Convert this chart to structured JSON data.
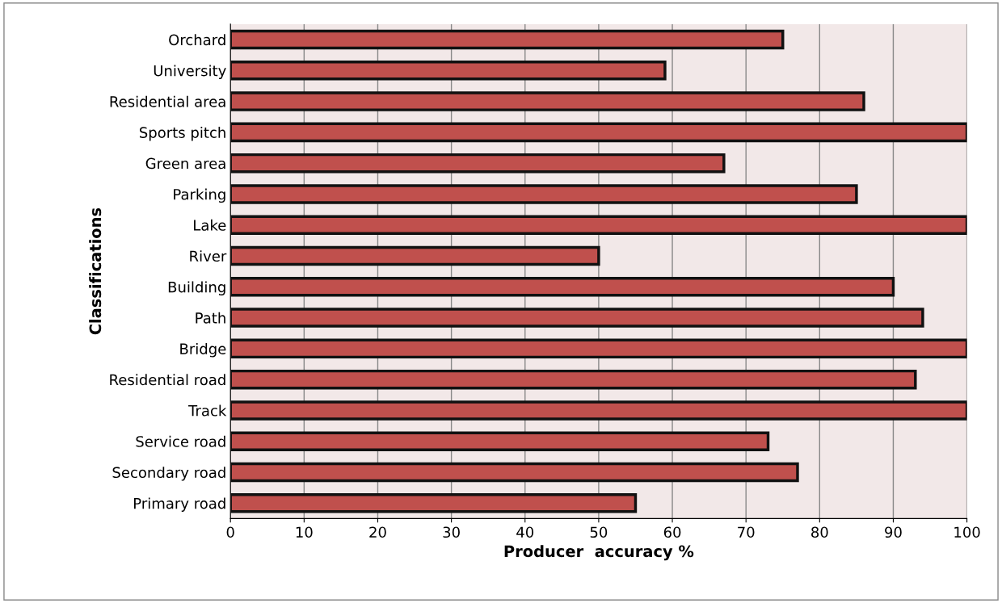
{
  "chart_data": {
    "type": "bar",
    "orientation": "horizontal",
    "xlabel": "Producer  accuracy %",
    "ylabel": "Classifications",
    "categories": [
      "Orchard",
      "University",
      "Residential area",
      "Sports pitch",
      "Green area",
      "Parking",
      "Lake",
      "River",
      "Building",
      "Path",
      "Bridge",
      "Residential road",
      "Track",
      "Service road",
      "Secondary road",
      "Primary road"
    ],
    "values": [
      75,
      59,
      86,
      100,
      67,
      85,
      100,
      50,
      90,
      94,
      100,
      93,
      100,
      73,
      77,
      55
    ],
    "color": "#c0504d",
    "xlim": [
      0,
      100
    ],
    "xticks": [
      0,
      10,
      20,
      30,
      40,
      50,
      60,
      70,
      80,
      90,
      100
    ],
    "grid": "x"
  }
}
